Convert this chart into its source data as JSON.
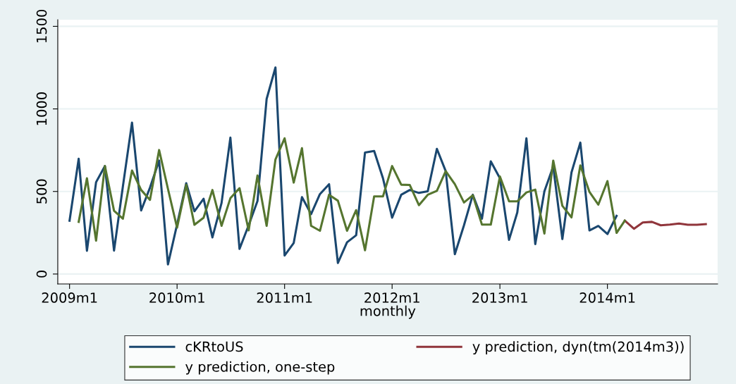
{
  "chart_data": {
    "type": "line",
    "xlabel": "monthly",
    "xlim": [
      "2008-11-22",
      "2015-01-10"
    ],
    "xticks": [
      {
        "value": "2009-01",
        "label": "2009m1"
      },
      {
        "value": "2010-01",
        "label": "2010m1"
      },
      {
        "value": "2011-01",
        "label": "2011m1"
      },
      {
        "value": "2012-01",
        "label": "2012m1"
      },
      {
        "value": "2013-01",
        "label": "2013m1"
      },
      {
        "value": "2014-01",
        "label": "2014m1"
      }
    ],
    "ylim": [
      -60,
      1540
    ],
    "yticks": [
      0,
      500,
      1000,
      1500
    ],
    "grid": "y",
    "legend": "bottom",
    "marker": "none",
    "line_style": "solid",
    "series": [
      {
        "name": "cKRtoUS",
        "color": "#1a476f",
        "x": [
          "2009-01",
          "2009-02",
          "2009-03",
          "2009-04",
          "2009-05",
          "2009-06",
          "2009-07",
          "2009-08",
          "2009-09",
          "2009-10",
          "2009-11",
          "2009-12",
          "2010-01",
          "2010-02",
          "2010-03",
          "2010-04",
          "2010-05",
          "2010-06",
          "2010-07",
          "2010-08",
          "2010-09",
          "2010-10",
          "2010-11",
          "2010-12",
          "2011-01",
          "2011-02",
          "2011-03",
          "2011-04",
          "2011-05",
          "2011-06",
          "2011-07",
          "2011-08",
          "2011-09",
          "2011-10",
          "2011-11",
          "2011-12",
          "2012-01",
          "2012-02",
          "2012-03",
          "2012-04",
          "2012-05",
          "2012-06",
          "2012-07",
          "2012-08",
          "2012-09",
          "2012-10",
          "2012-11",
          "2012-12",
          "2013-01",
          "2013-02",
          "2013-03",
          "2013-04",
          "2013-05",
          "2013-06",
          "2013-07",
          "2013-08",
          "2013-09",
          "2013-10",
          "2013-11",
          "2013-12",
          "2014-01",
          "2014-02"
        ],
        "values": [
          323,
          698,
          141,
          556,
          654,
          142,
          530,
          917,
          385,
          523,
          687,
          58,
          300,
          550,
          380,
          456,
          222,
          430,
          826,
          152,
          295,
          442,
          1060,
          1251,
          112,
          188,
          466,
          363,
          484,
          544,
          67,
          192,
          235,
          736,
          745,
          580,
          341,
          480,
          509,
          491,
          501,
          758,
          623,
          120,
          295,
          480,
          335,
          682,
          580,
          207,
          373,
          822,
          181,
          501,
          651,
          212,
          615,
          796,
          264,
          291,
          242,
          352
        ]
      },
      {
        "name": "y prediction, dyn(tm(2014m3))",
        "color": "#90353b",
        "x": [
          "2014-03",
          "2014-04",
          "2014-05",
          "2014-06",
          "2014-07",
          "2014-08",
          "2014-09",
          "2014-10",
          "2014-11",
          "2014-12"
        ],
        "values": [
          323,
          274,
          312,
          316,
          295,
          299,
          306,
          298,
          298,
          302
        ]
      },
      {
        "name": "y prediction, one-step",
        "color": "#55752f",
        "x": [
          "2009-02",
          "2009-03",
          "2009-04",
          "2009-05",
          "2009-06",
          "2009-07",
          "2009-08",
          "2009-09",
          "2009-10",
          "2009-11",
          "2009-12",
          "2010-01",
          "2010-02",
          "2010-03",
          "2010-04",
          "2010-05",
          "2010-06",
          "2010-07",
          "2010-08",
          "2010-09",
          "2010-10",
          "2010-11",
          "2010-12",
          "2011-01",
          "2011-02",
          "2011-03",
          "2011-04",
          "2011-05",
          "2011-06",
          "2011-07",
          "2011-08",
          "2011-09",
          "2011-10",
          "2011-11",
          "2011-12",
          "2012-01",
          "2012-02",
          "2012-03",
          "2012-04",
          "2012-05",
          "2012-06",
          "2012-07",
          "2012-08",
          "2012-09",
          "2012-10",
          "2012-11",
          "2012-12",
          "2013-01",
          "2013-02",
          "2013-03",
          "2013-04",
          "2013-05",
          "2013-06",
          "2013-07",
          "2013-08",
          "2013-09",
          "2013-10",
          "2013-11",
          "2013-12",
          "2014-01",
          "2014-02",
          "2014-03"
        ],
        "values": [
          316,
          580,
          202,
          654,
          383,
          335,
          627,
          509,
          449,
          751,
          516,
          281,
          540,
          298,
          341,
          509,
          292,
          459,
          520,
          264,
          597,
          292,
          694,
          822,
          554,
          762,
          292,
          262,
          480,
          444,
          262,
          387,
          144,
          470,
          470,
          654,
          541,
          539,
          417,
          480,
          504,
          623,
          544,
          433,
          477,
          299,
          299,
          591,
          440,
          440,
          494,
          511,
          245,
          687,
          413,
          343,
          658,
          497,
          420,
          563,
          249,
          323
        ]
      }
    ]
  }
}
